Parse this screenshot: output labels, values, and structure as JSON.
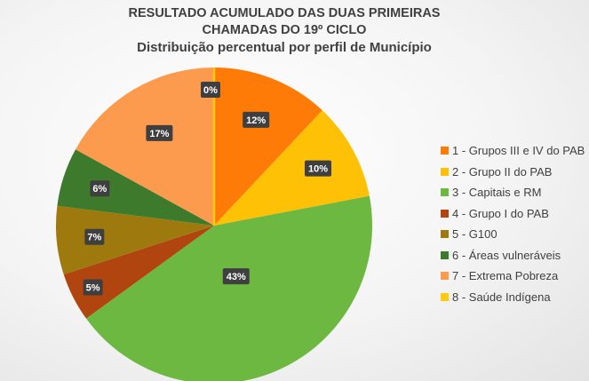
{
  "chart_data": {
    "type": "pie",
    "title": "RESULTADO ACUMULADO DAS DUAS PRIMEIRAS CHAMADAS DO 19º CICLO",
    "title_line1": "RESULTADO ACUMULADO DAS DUAS PRIMEIRAS",
    "title_line2": "CHAMADAS DO 19º CICLO",
    "subtitle": "Distribuição percentual por perfil de Município",
    "legend_position": "right",
    "slices": [
      {
        "name": "1 - Grupos III e IV do PAB",
        "value": 12,
        "label": "12%",
        "color": "#FF7B07"
      },
      {
        "name": "2 - Grupo II do PAB",
        "value": 10,
        "label": "10%",
        "color": "#FFC106"
      },
      {
        "name": "3 - Capitais e RM",
        "value": 43,
        "label": "43%",
        "color": "#6DB840"
      },
      {
        "name": "4 - Grupo I do PAB",
        "value": 5,
        "label": "5%",
        "color": "#B1450F"
      },
      {
        "name": "5 - G100",
        "value": 7,
        "label": "7%",
        "color": "#9E7A0E"
      },
      {
        "name": "6 - Áreas vulneráveis",
        "value": 6,
        "label": "6%",
        "color": "#3D7A2B"
      },
      {
        "name": "7 - Extrema Pobreza",
        "value": 17,
        "label": "17%",
        "color": "#FC9A4E"
      },
      {
        "name": "8 - Saúde Indígena",
        "value": 0,
        "label": "0%",
        "color": "#FFC90E"
      }
    ]
  }
}
